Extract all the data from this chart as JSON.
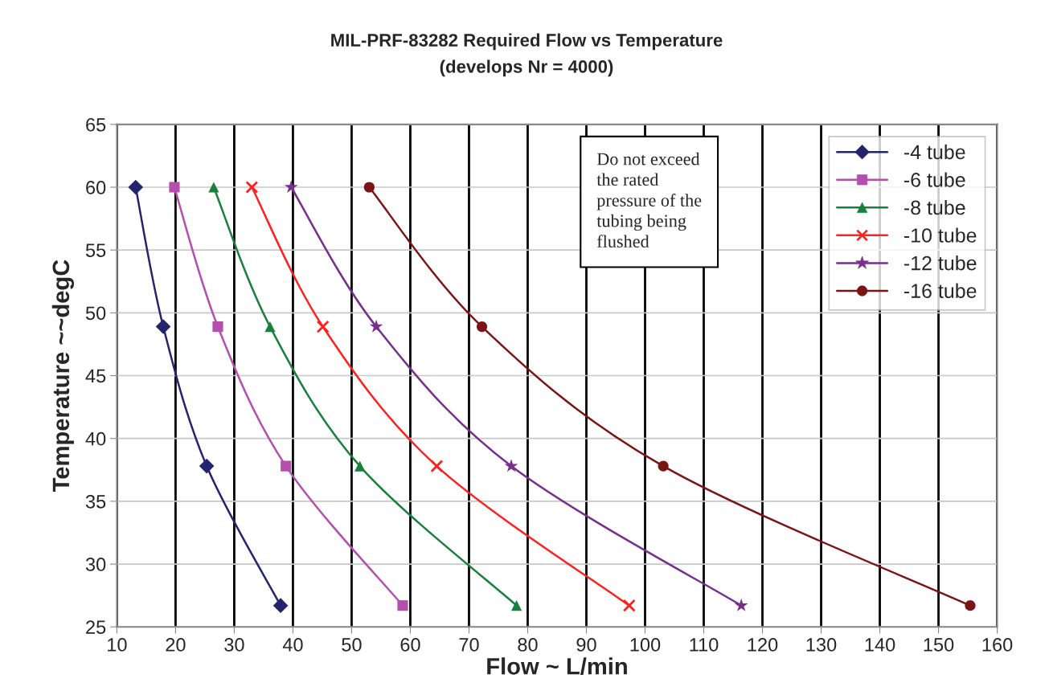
{
  "chart_data": {
    "type": "line",
    "title": "MIL-PRF-83282 Required Flow vs Temperature",
    "subtitle": "(develops Nr = 4000)",
    "xlabel": "Flow ~ L/min",
    "ylabel": "Temperature ~~degC",
    "annotations": [
      "Do not exceed\nthe rated\npressure of the\ntubing being\nflushed"
    ],
    "series": [
      {
        "name": "-4 tube",
        "color": "#23236e",
        "marker": "diamond",
        "x": [
          13.2,
          17.9,
          25.3,
          37.9
        ],
        "values": [
          60,
          48.9,
          37.8,
          26.7
        ]
      },
      {
        "name": "-6 tube",
        "color": "#b54fae",
        "marker": "square",
        "x": [
          19.8,
          27.2,
          38.8,
          58.7
        ],
        "values": [
          60,
          48.9,
          37.8,
          26.7
        ]
      },
      {
        "name": "-8 tube",
        "color": "#18803c",
        "marker": "triangle",
        "x": [
          26.5,
          36.1,
          51.4,
          78.1
        ],
        "values": [
          60,
          48.9,
          37.8,
          26.7
        ]
      },
      {
        "name": "-10 tube",
        "color": "#ff2020",
        "marker": "cross",
        "x": [
          33.0,
          45.1,
          64.5,
          97.3
        ],
        "values": [
          60,
          48.9,
          37.8,
          26.7
        ]
      },
      {
        "name": "-12 tube",
        "color": "#76308c",
        "marker": "star",
        "x": [
          39.7,
          54.2,
          77.2,
          116.4
        ],
        "values": [
          60,
          48.9,
          37.8,
          26.7
        ]
      },
      {
        "name": "-16 tube",
        "color": "#7b1414",
        "marker": "circle",
        "x": [
          53.0,
          72.2,
          103.1,
          155.4
        ],
        "values": [
          60,
          48.9,
          37.8,
          26.7
        ]
      }
    ],
    "xlim": [
      10,
      160
    ],
    "xticks": [
      10,
      20,
      30,
      40,
      50,
      60,
      70,
      80,
      90,
      100,
      110,
      120,
      130,
      140,
      150,
      160
    ],
    "ylim": [
      25,
      65
    ],
    "yticks": [
      25,
      30,
      35,
      40,
      45,
      50,
      55,
      60,
      65
    ],
    "grid": true,
    "legend": "top right",
    "line_style": "solid"
  }
}
